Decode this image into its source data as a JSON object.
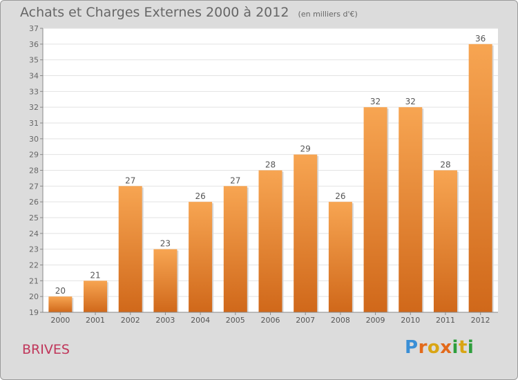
{
  "header": {
    "title": "Achats et Charges Externes 2000 à 2012",
    "unit": "(en milliers d'€)"
  },
  "place_label": "BRIVES",
  "logo": {
    "text": "Proxiti",
    "colors": [
      "#3a8fd6",
      "#e36a1b",
      "#2e9e3c",
      "#d9a514"
    ]
  },
  "colors": {
    "bar_light": "#f7a552",
    "bar_dark": "#d0681a",
    "plot_bg": "#ffffff",
    "frame_bg": "#dcdcdc",
    "grid": "#e2e2e2",
    "text": "#666666",
    "place": "#c0365a"
  },
  "chart_data": {
    "type": "bar",
    "title": "Achats et Charges Externes 2000 à 2012",
    "subtitle": "(en milliers d'€)",
    "categories": [
      "2000",
      "2001",
      "2002",
      "2003",
      "2004",
      "2005",
      "2006",
      "2007",
      "2008",
      "2009",
      "2010",
      "2011",
      "2012"
    ],
    "values": [
      20,
      21,
      27,
      23,
      26,
      27,
      28,
      29,
      26,
      32,
      32,
      28,
      36
    ],
    "ylim": [
      19,
      37
    ],
    "yticks": [
      19,
      20,
      21,
      22,
      23,
      24,
      25,
      26,
      27,
      28,
      29,
      30,
      31,
      32,
      33,
      34,
      35,
      36,
      37
    ],
    "grid": true,
    "legend": "none",
    "data_labels": true
  }
}
